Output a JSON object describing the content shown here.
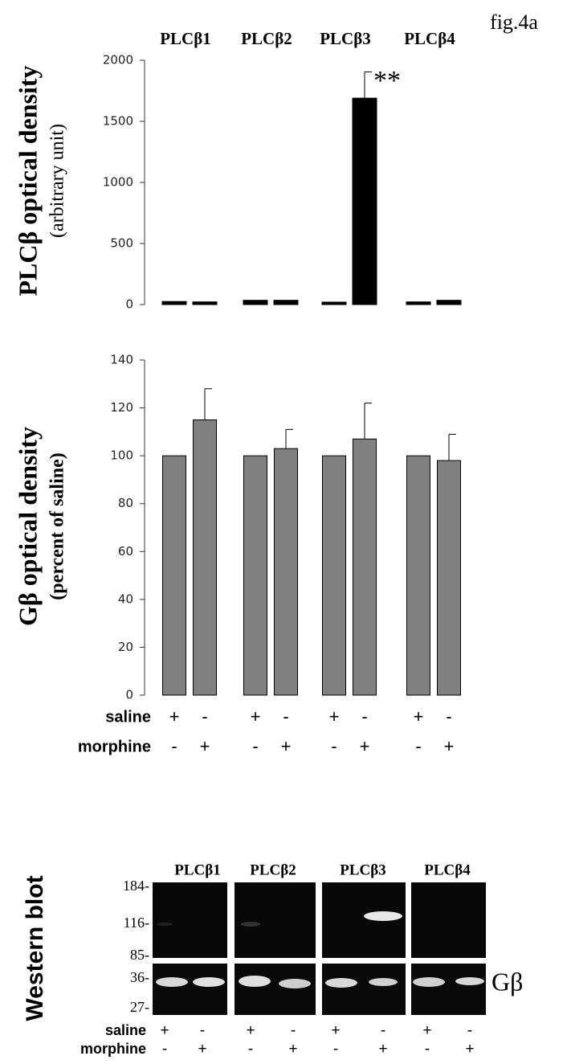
{
  "figure_label": "fig.4a",
  "chart_data": [
    {
      "type": "bar",
      "ylabel": "PLCβ optical density",
      "ylabel_sub": "(arbitrary unit)",
      "categories": [
        "PLCβ1",
        "PLCβ2",
        "PLCβ3",
        "PLCβ4"
      ],
      "series": [
        {
          "color": "#000000",
          "values": [
            25,
            35,
            20,
            22
          ],
          "errors": [
            null,
            null,
            null,
            null
          ]
        },
        {
          "color": "#000000",
          "values": [
            22,
            35,
            1690,
            35
          ],
          "errors": [
            null,
            null,
            215,
            null
          ]
        }
      ],
      "annotations": [
        {
          "text": "**",
          "series": 1,
          "index": 2
        }
      ],
      "ylim": [
        0,
        2000
      ],
      "yticks": [
        0,
        500,
        1000,
        1500,
        2000
      ]
    },
    {
      "type": "bar",
      "ylabel": "Gβ optical density",
      "ylabel_sub": "(percent of saline)",
      "series": [
        {
          "color": "#808080",
          "values": [
            100,
            100,
            100,
            100
          ],
          "errors": [
            null,
            null,
            null,
            null
          ]
        },
        {
          "color": "#808080",
          "values": [
            115,
            103,
            107,
            98
          ],
          "errors": [
            13,
            8,
            15,
            11
          ]
        }
      ],
      "ylim": [
        0,
        140
      ],
      "yticks": [
        0,
        20,
        40,
        60,
        80,
        100,
        120,
        140
      ],
      "rows": [
        {
          "label": "saline",
          "signs": [
            "+",
            "-",
            "+",
            "-",
            "+",
            "-",
            "+",
            "-"
          ]
        },
        {
          "label": "morphine",
          "signs": [
            "-",
            "+",
            "-",
            "+",
            "-",
            "+",
            "-",
            "+"
          ]
        }
      ]
    }
  ],
  "western_blot": {
    "ylabel": "Western blot",
    "groups": [
      "PLCβ1",
      "PLCβ2",
      "PLCβ3",
      "PLCβ4"
    ],
    "markers": [
      "184-",
      "116-",
      "85-",
      "36-",
      "27-"
    ],
    "band_label": "Gβ",
    "rows": [
      {
        "label": "saline",
        "signs": [
          "+",
          "-",
          "+",
          "-",
          "+",
          "-",
          "+",
          "-"
        ]
      },
      {
        "label": "morphine",
        "signs": [
          "-",
          "+",
          "-",
          "+",
          "-",
          "+",
          "-",
          "+"
        ]
      }
    ]
  }
}
